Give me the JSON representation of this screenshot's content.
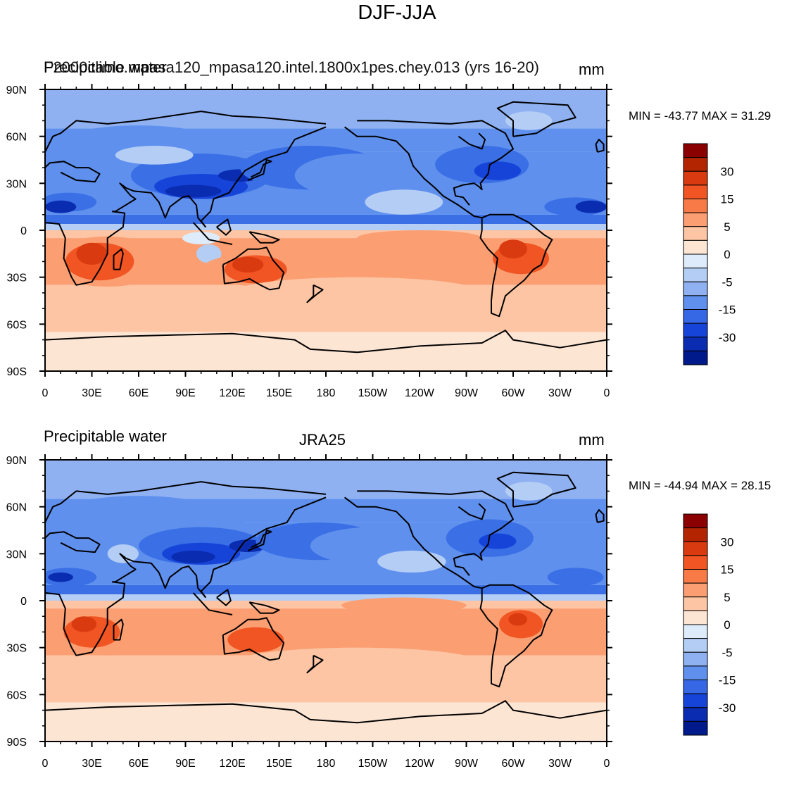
{
  "figure_title": "DJF-JJA",
  "panels": [
    {
      "left_label": "Precipitable water",
      "center_label": "F2000climo.mpasa120_mpasa120.intel.1800x1pes.chey.013 (yrs 16-20)",
      "units": "mm",
      "min_label": "MIN =",
      "min_value": "-43.77",
      "max_label": "MAX =",
      "max_value": "31.29"
    },
    {
      "left_label": "Precipitable water",
      "center_label": "JRA25",
      "units": "mm",
      "min_label": "MIN =",
      "min_value": "-44.94",
      "max_label": "MAX =",
      "max_value": "28.15"
    }
  ],
  "lat_ticks": [
    "90N",
    "60N",
    "30N",
    "0",
    "30S",
    "60S",
    "90S"
  ],
  "lon_ticks": [
    "0",
    "30E",
    "60E",
    "90E",
    "120E",
    "150E",
    "180",
    "150W",
    "120W",
    "90W",
    "60W",
    "30W",
    "0"
  ],
  "colorbar": {
    "colors": [
      "#8b0000",
      "#b32400",
      "#d93a0f",
      "#f05523",
      "#f77a47",
      "#fb9e72",
      "#fdc5a3",
      "#fde5d4",
      "#ddebfa",
      "#b4cdf5",
      "#8fb1f2",
      "#5f90ee",
      "#3668e6",
      "#1644d9",
      "#0a2cb0",
      "#001a8c"
    ],
    "labels": [
      "30",
      "15",
      "5",
      "0",
      "-5",
      "-15",
      "-30"
    ]
  },
  "field_colors": {
    "ocean_neg_strong": "#3a6fe5",
    "ocean_neg_mid": "#5f90ee",
    "ocean_neg_light": "#8fb1f2",
    "neg_very_light": "#b4cdf5",
    "neg_faint": "#ddebfa",
    "pos_faint": "#fde5d4",
    "pos_light": "#fdc5a3",
    "pos_mid": "#fb9e72",
    "pos_strong": "#f77a47",
    "pos_stronger": "#f05523",
    "pos_max": "#d93a0f",
    "neg_max": "#0a2cb0",
    "neg_strong2": "#1644d9"
  }
}
